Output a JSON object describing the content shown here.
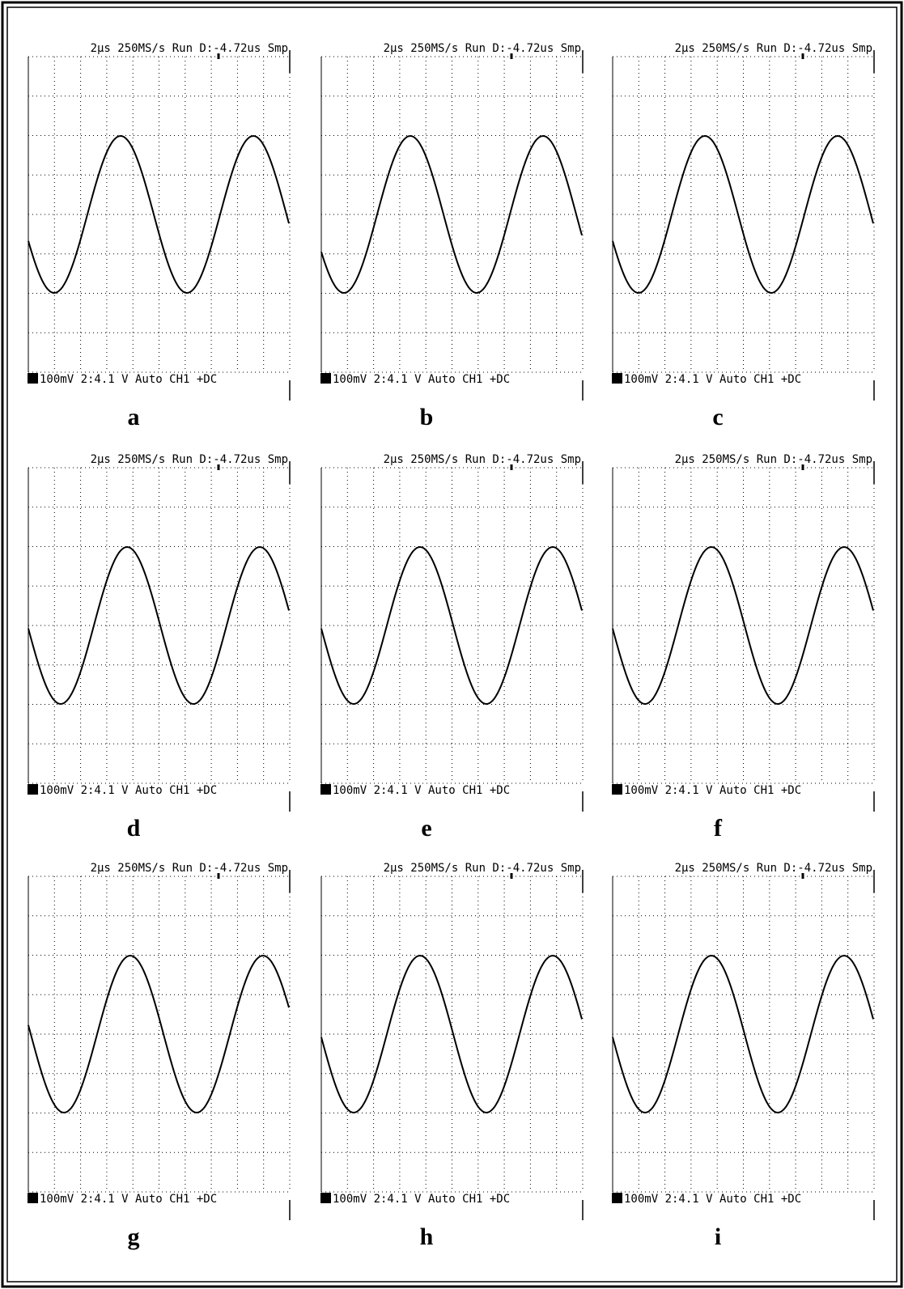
{
  "panels": [
    {
      "header": "2μs  250MS/s Run D:-4.72us Smp",
      "footer": "100mV  2:4.1 V  Auto CH1 +DC",
      "label": "a"
    },
    {
      "header": "2μs  250MS/s Run D:-4.72us Smp",
      "footer": "100mV  2:4.1 V  Auto CH1 +DC",
      "label": "b"
    },
    {
      "header": "2μs  250MS/s Run D:-4.72us Smp",
      "footer": "100mV  2:4.1 V  Auto CH1 +DC",
      "label": "c"
    },
    {
      "header": "2μs  250MS/s Run D:-4.72us Smp",
      "footer": "100mV  2:4.1 V  Auto CH1 +DC",
      "label": "d"
    },
    {
      "header": "2μs  250MS/s Run D:-4.72us Smp",
      "footer": "100mV  2:4.1 V  Auto CH1 +DC",
      "label": "e"
    },
    {
      "header": "2μs  250MS/s Run D:-4.72us Smp",
      "footer": "100mV  2:4.1 V  Auto CH1 +DC",
      "label": "f"
    },
    {
      "header": "2μs  250MS/s Run D:-4.72us Smp",
      "footer": "100mV  2:4.1 V  Auto CH1 +DC",
      "label": "g"
    },
    {
      "header": "2μs  250MS/s Run D:-4.72us Smp",
      "footer": "100mV  2:4.1 V  Auto CH1 +DC",
      "label": "h"
    },
    {
      "header": "2μs  250MS/s Run D:-4.72us Smp",
      "footer": "100mV  2:4.1 V  Auto CH1 +DC",
      "label": "i"
    }
  ]
}
